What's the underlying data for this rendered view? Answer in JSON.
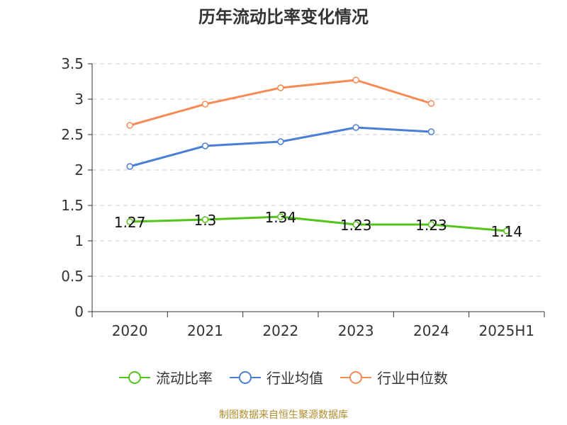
{
  "chart_data": {
    "type": "line",
    "title": "历年流动比率变化情况",
    "categories": [
      "2020",
      "2021",
      "2022",
      "2023",
      "2024",
      "2025H1"
    ],
    "ylim": [
      0,
      3.5
    ],
    "yticks": [
      "0",
      "0.5",
      "1",
      "1.5",
      "2",
      "2.5",
      "3",
      "3.5"
    ],
    "grid": true,
    "legend_position": "bottom",
    "series": [
      {
        "name": "流动比率",
        "color": "#52c41a",
        "values": [
          1.27,
          1.3,
          1.34,
          1.23,
          1.23,
          1.14
        ],
        "labels": [
          "1.27",
          "1.3",
          "1.34",
          "1.23",
          "1.23",
          "1.14"
        ]
      },
      {
        "name": "行业均值",
        "color": "#4a7fd8",
        "values": [
          2.05,
          2.34,
          2.4,
          2.6,
          2.54,
          null
        ]
      },
      {
        "name": "行业中位数",
        "color": "#f58b54",
        "values": [
          2.63,
          2.93,
          3.16,
          3.27,
          2.94,
          null
        ]
      }
    ],
    "source": "制图数据来自恒生聚源数据库"
  }
}
